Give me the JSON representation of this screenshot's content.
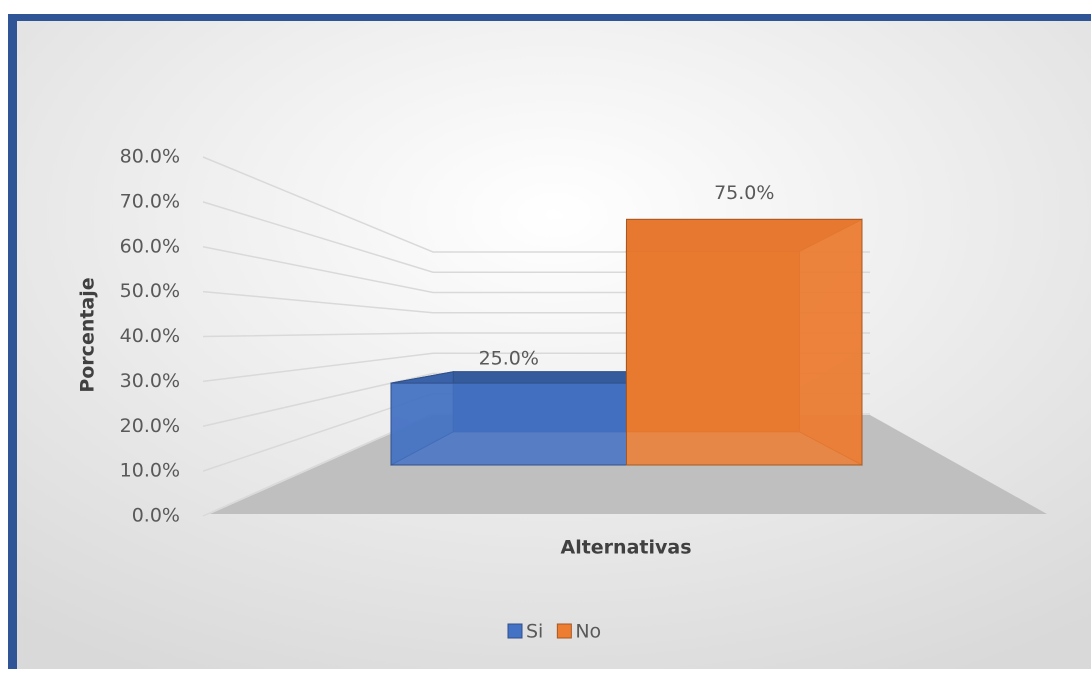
{
  "chart_data": {
    "type": "bar3d",
    "categories": [
      null
    ],
    "series": [
      {
        "name": "Si",
        "color": "#4472c4",
        "values": [
          25
        ],
        "value_labels": [
          "25.0%"
        ]
      },
      {
        "name": "No",
        "color": "#ed7d31",
        "values": [
          75
        ],
        "value_labels": [
          "75.0%"
        ]
      }
    ],
    "ylim": [
      0,
      80
    ],
    "yticks": [
      {
        "value": 0,
        "label": "0.0%"
      },
      {
        "value": 10,
        "label": "10.0%"
      },
      {
        "value": 20,
        "label": "20.0%"
      },
      {
        "value": 30,
        "label": "30.0%"
      },
      {
        "value": 40,
        "label": "40.0%"
      },
      {
        "value": 50,
        "label": "50.0%"
      },
      {
        "value": 60,
        "label": "60.0%"
      },
      {
        "value": 70,
        "label": "70.0%"
      },
      {
        "value": 80,
        "label": "80.0%"
      }
    ],
    "ylabel": "Porcentaje",
    "xlabel": "Alternativas",
    "grid": true,
    "legend": "bottom"
  }
}
